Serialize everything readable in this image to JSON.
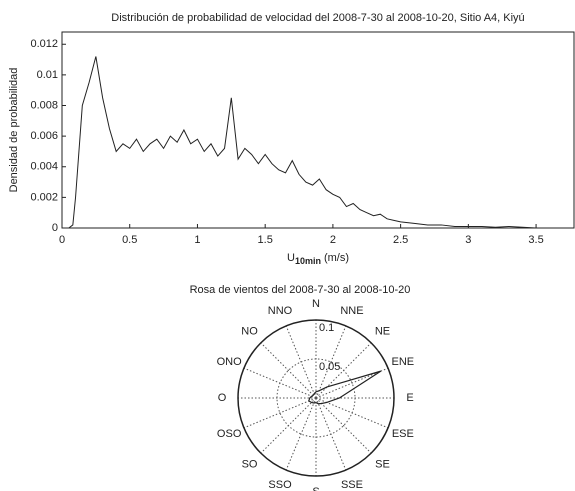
{
  "chart_data": [
    {
      "type": "line",
      "title": "Distribución de probabilidad de velocidad del 2008-7-30 al 2008-10-20, Sitio A4, Kiyú",
      "xlabel": "U",
      "xlabel_subscript": "10min",
      "xlabel_unit": "(m/s)",
      "ylabel": "Densidad de probabilidad",
      "x": [
        0.05,
        0.08,
        0.1,
        0.15,
        0.2,
        0.25,
        0.3,
        0.35,
        0.4,
        0.45,
        0.5,
        0.55,
        0.6,
        0.65,
        0.7,
        0.75,
        0.8,
        0.85,
        0.9,
        0.95,
        1.0,
        1.05,
        1.1,
        1.15,
        1.2,
        1.25,
        1.3,
        1.35,
        1.4,
        1.45,
        1.5,
        1.55,
        1.6,
        1.65,
        1.7,
        1.75,
        1.8,
        1.85,
        1.9,
        1.95,
        2.0,
        2.05,
        2.1,
        2.15,
        2.2,
        2.25,
        2.3,
        2.35,
        2.4,
        2.45,
        2.5,
        2.6,
        2.7,
        2.8,
        2.9,
        3.0,
        3.1,
        3.2,
        3.3,
        3.4,
        3.5
      ],
      "series": [
        {
          "color": "#222222",
          "values": [
            0,
            0.0002,
            0.002,
            0.008,
            0.0095,
            0.0112,
            0.0085,
            0.0065,
            0.005,
            0.0055,
            0.0052,
            0.0058,
            0.005,
            0.0055,
            0.0058,
            0.0052,
            0.006,
            0.0056,
            0.0064,
            0.0055,
            0.0058,
            0.005,
            0.0055,
            0.0047,
            0.0052,
            0.0085,
            0.0045,
            0.0052,
            0.0048,
            0.0042,
            0.0048,
            0.0042,
            0.0038,
            0.0036,
            0.0044,
            0.0035,
            0.003,
            0.0028,
            0.0032,
            0.0025,
            0.0022,
            0.002,
            0.0014,
            0.0016,
            0.0012,
            0.001,
            0.0008,
            0.0009,
            0.0006,
            0.0005,
            0.0004,
            0.0003,
            0.0002,
            0.0002,
            0.0001,
            0.0001,
            0.0001,
            5e-05,
            0.0001,
            5e-05,
            0
          ]
        }
      ],
      "xlim": [
        0,
        3.78
      ],
      "xticks": [
        0,
        0.5,
        1,
        1.5,
        2,
        2.5,
        3,
        3.5
      ],
      "ylim": [
        0,
        0.0128
      ],
      "yticks": [
        0,
        0.002,
        0.004,
        0.006,
        0.008,
        0.01,
        0.012
      ]
    },
    {
      "type": "rose",
      "title": "Rosa de vientos del 2008-7-30 al 2008-10-20",
      "categories": [
        "N",
        "NNE",
        "NE",
        "ENE",
        "E",
        "ESE",
        "SE",
        "SSE",
        "S",
        "SSO",
        "SO",
        "OSO",
        "O",
        "ONO",
        "NO",
        "NNO"
      ],
      "values": [
        0.008,
        0.01,
        0.02,
        0.09,
        0.03,
        0.015,
        0.01,
        0.008,
        0.006,
        0.007,
        0.008,
        0.01,
        0.008,
        0.006,
        0.005,
        0.006
      ],
      "color": "#222222",
      "rlim": [
        0,
        0.1
      ],
      "rticks": [
        0.05,
        0.1
      ]
    }
  ]
}
